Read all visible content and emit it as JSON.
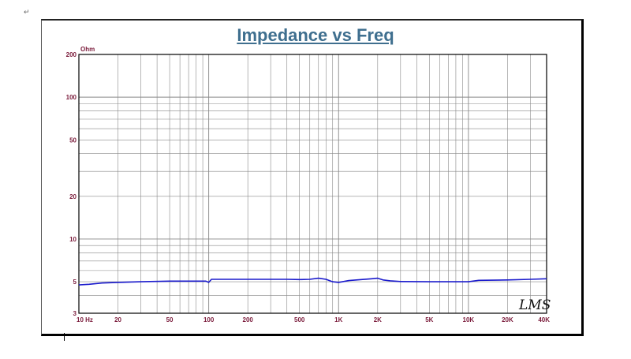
{
  "page_mark": "↵",
  "chart_data": {
    "type": "line",
    "title": "Impedance vs Freq",
    "ylabel": "Ohm",
    "xlabel": "",
    "x_scale": "log",
    "y_scale": "log",
    "xlim": [
      10,
      40000
    ],
    "ylim": [
      3,
      200
    ],
    "grid": true,
    "x_ticks": [
      {
        "value": 10,
        "label": "10  Hz"
      },
      {
        "value": 20,
        "label": "20"
      },
      {
        "value": 50,
        "label": "50"
      },
      {
        "value": 100,
        "label": "100"
      },
      {
        "value": 200,
        "label": "200"
      },
      {
        "value": 500,
        "label": "500"
      },
      {
        "value": 1000,
        "label": "1K"
      },
      {
        "value": 2000,
        "label": "2K"
      },
      {
        "value": 5000,
        "label": "5K"
      },
      {
        "value": 10000,
        "label": "10K"
      },
      {
        "value": 20000,
        "label": "20K"
      },
      {
        "value": 40000,
        "label": "40K"
      }
    ],
    "y_ticks": [
      {
        "value": 200,
        "label": "200"
      },
      {
        "value": 100,
        "label": "100"
      },
      {
        "value": 50,
        "label": "50"
      },
      {
        "value": 20,
        "label": "20"
      },
      {
        "value": 10,
        "label": "10"
      },
      {
        "value": 5,
        "label": "5"
      },
      {
        "value": 3,
        "label": "3"
      }
    ],
    "series": [
      {
        "color": "#1a1acc",
        "x": [
          10,
          12,
          15,
          20,
          30,
          50,
          70,
          95,
          100,
          105,
          200,
          300,
          400,
          500,
          600,
          700,
          800,
          900,
          1000,
          1200,
          1500,
          1800,
          2000,
          2200,
          2500,
          3000,
          5000,
          8000,
          10000,
          12000,
          20000,
          30000,
          40000
        ],
        "y": [
          4.75,
          4.8,
          4.9,
          4.95,
          5.0,
          5.05,
          5.05,
          5.05,
          4.95,
          5.2,
          5.2,
          5.2,
          5.2,
          5.18,
          5.2,
          5.3,
          5.2,
          5.0,
          4.95,
          5.1,
          5.18,
          5.25,
          5.3,
          5.15,
          5.08,
          5.02,
          5.0,
          5.0,
          5.0,
          5.12,
          5.15,
          5.2,
          5.25
        ]
      }
    ],
    "watermark": "LMS",
    "colors": {
      "tick_label": "#7a1a3a",
      "title": "#3f6f8f",
      "grid": "#888888",
      "frame": "#000000"
    }
  }
}
